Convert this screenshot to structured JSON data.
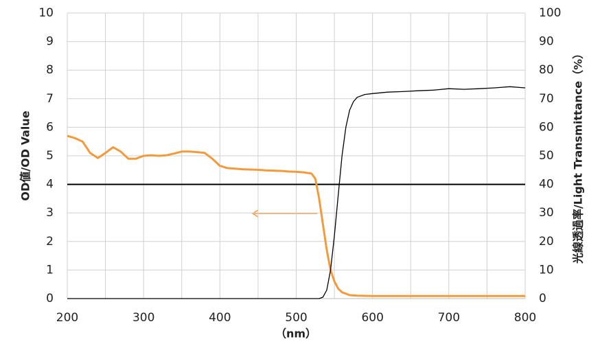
{
  "chart_data": {
    "type": "line",
    "y_label": "OD値/OD Value",
    "y2_label": "光線透過率/Light Transmittance（%）",
    "x_label": "（nm）",
    "xlim": [
      200,
      800
    ],
    "xticks": [
      200,
      300,
      400,
      500,
      600,
      700,
      800
    ],
    "xgrid": [
      200,
      250,
      300,
      350,
      400,
      450,
      500,
      550,
      600,
      650,
      700,
      750,
      800
    ],
    "ylim": [
      0,
      10
    ],
    "yticks": [
      0,
      1,
      2,
      3,
      4,
      5,
      6,
      7,
      8,
      9,
      10
    ],
    "y2lim": [
      0,
      100
    ],
    "y2ticks": [
      0,
      10,
      20,
      30,
      40,
      50,
      60,
      70,
      80,
      90,
      100
    ],
    "grid": true,
    "hline": 4,
    "series": [
      {
        "color": "#f39a3c",
        "width": 3,
        "x": [
          200,
          210,
          220,
          230,
          240,
          250,
          260,
          270,
          280,
          290,
          300,
          310,
          320,
          330,
          340,
          350,
          360,
          370,
          380,
          390,
          400,
          410,
          420,
          430,
          440,
          450,
          460,
          470,
          480,
          490,
          500,
          510,
          520,
          525,
          530,
          535,
          540,
          545,
          550,
          555,
          560,
          570,
          580,
          600,
          650,
          700,
          750,
          800
        ],
        "values": [
          5.7,
          5.62,
          5.5,
          5.1,
          4.92,
          5.1,
          5.3,
          5.15,
          4.9,
          4.9,
          5.0,
          5.02,
          5.0,
          5.02,
          5.08,
          5.15,
          5.15,
          5.13,
          5.1,
          4.9,
          4.65,
          4.57,
          4.55,
          4.53,
          4.52,
          4.51,
          4.49,
          4.48,
          4.47,
          4.45,
          4.44,
          4.42,
          4.38,
          4.2,
          3.5,
          2.6,
          1.7,
          1.0,
          0.6,
          0.35,
          0.22,
          0.12,
          0.1,
          0.09,
          0.09,
          0.09,
          0.09,
          0.09
        ]
      },
      {
        "color": "#000000",
        "width": 1.3,
        "axis": "y2",
        "x": [
          200,
          300,
          400,
          500,
          530,
          535,
          540,
          545,
          550,
          555,
          560,
          565,
          570,
          575,
          580,
          590,
          600,
          620,
          640,
          660,
          680,
          700,
          720,
          740,
          760,
          780,
          800
        ],
        "values": [
          0,
          0,
          0,
          0,
          0,
          0.5,
          3,
          10,
          22,
          36,
          50,
          60,
          66,
          69,
          70.5,
          71.5,
          71.8,
          72.3,
          72.5,
          72.8,
          73,
          73.5,
          73.3,
          73.5,
          73.8,
          74.2,
          73.8
        ]
      }
    ]
  }
}
